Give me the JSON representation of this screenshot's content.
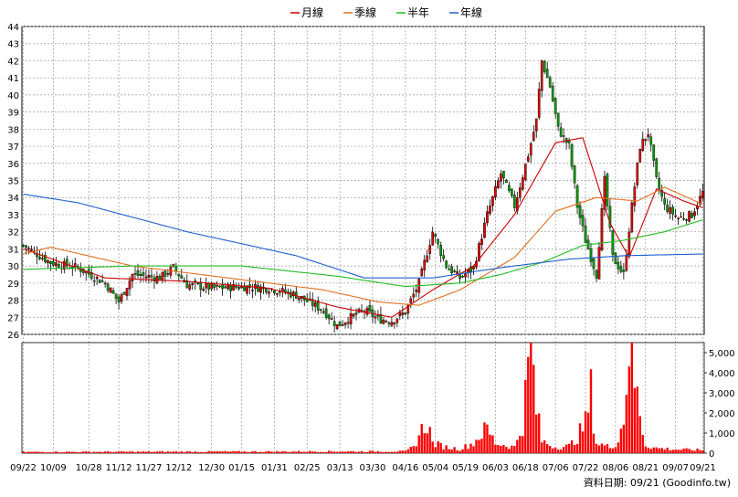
{
  "legend": {
    "items": [
      {
        "label": "月線",
        "color": "#cc0000"
      },
      {
        "label": "季線",
        "color": "#e07020"
      },
      {
        "label": "半年",
        "color": "#22bb22"
      },
      {
        "label": "年線",
        "color": "#1f5fcf"
      }
    ]
  },
  "footer": {
    "date_text": "資料日期: 09/21 (Goodinfo.tw)"
  },
  "chart_data": [
    {
      "type": "candlestick",
      "title": "",
      "ylim": [
        26,
        44
      ],
      "y_ticks": [
        26,
        27,
        28,
        29,
        30,
        31,
        32,
        33,
        34,
        35,
        36,
        37,
        38,
        39,
        40,
        41,
        42,
        43,
        44
      ],
      "grid": true,
      "legend_position": "top",
      "x_ticks": [
        {
          "label": "09/22",
          "index": 0
        },
        {
          "label": "10/09",
          "index": 11
        },
        {
          "label": "10/28",
          "index": 24
        },
        {
          "label": "11/12",
          "index": 35
        },
        {
          "label": "11/27",
          "index": 46
        },
        {
          "label": "12/12",
          "index": 57
        },
        {
          "label": "12/30",
          "index": 69
        },
        {
          "label": "01/15",
          "index": 80
        },
        {
          "label": "01/31",
          "index": 92
        },
        {
          "label": "02/25",
          "index": 104
        },
        {
          "label": "03/13",
          "index": 116
        },
        {
          "label": "03/30",
          "index": 128
        },
        {
          "label": "04/16",
          "index": 140
        },
        {
          "label": "05/04",
          "index": 151
        },
        {
          "label": "05/19",
          "index": 162
        },
        {
          "label": "06/03",
          "index": 173
        },
        {
          "label": "06/18",
          "index": 184
        },
        {
          "label": "07/06",
          "index": 195
        },
        {
          "label": "07/22",
          "index": 206
        },
        {
          "label": "08/06",
          "index": 217
        },
        {
          "label": "08/21",
          "index": 228
        },
        {
          "label": "09/07",
          "index": 239
        },
        {
          "label": "09/21",
          "index": 249
        }
      ],
      "price_anchors": [
        [
          0,
          31.2
        ],
        [
          10,
          30.2
        ],
        [
          20,
          29.9
        ],
        [
          30,
          29.0
        ],
        [
          35,
          27.9
        ],
        [
          40,
          29.5
        ],
        [
          50,
          29.3
        ],
        [
          55,
          29.9
        ],
        [
          60,
          28.9
        ],
        [
          70,
          28.7
        ],
        [
          80,
          28.8
        ],
        [
          90,
          28.7
        ],
        [
          100,
          28.3
        ],
        [
          110,
          27.4
        ],
        [
          115,
          26.5
        ],
        [
          120,
          27.0
        ],
        [
          125,
          27.4
        ],
        [
          130,
          26.9
        ],
        [
          135,
          26.8
        ],
        [
          140,
          27.3
        ],
        [
          145,
          29.0
        ],
        [
          150,
          32.0
        ],
        [
          155,
          30.0
        ],
        [
          160,
          29.3
        ],
        [
          165,
          29.9
        ],
        [
          170,
          33.0
        ],
        [
          175,
          35.4
        ],
        [
          180,
          33.5
        ],
        [
          185,
          36.5
        ],
        [
          188,
          38.5
        ],
        [
          190,
          42.0
        ],
        [
          193,
          40.5
        ],
        [
          196,
          38.0
        ],
        [
          200,
          37.0
        ],
        [
          203,
          33.5
        ],
        [
          206,
          31.5
        ],
        [
          210,
          29.5
        ],
        [
          213,
          35.0
        ],
        [
          216,
          30.5
        ],
        [
          220,
          29.5
        ],
        [
          223,
          33.5
        ],
        [
          226,
          37.0
        ],
        [
          229,
          37.8
        ],
        [
          232,
          35.0
        ],
        [
          235,
          33.5
        ],
        [
          240,
          32.8
        ],
        [
          245,
          33.0
        ],
        [
          249,
          34.3
        ]
      ],
      "moving_averages": [
        {
          "name": "月線",
          "color": "#cc0000",
          "anchors": [
            [
              0,
              31.0
            ],
            [
              30,
              29.3
            ],
            [
              60,
              29.1
            ],
            [
              90,
              28.7
            ],
            [
              115,
              27.6
            ],
            [
              135,
              27.0
            ],
            [
              150,
              28.6
            ],
            [
              165,
              30.0
            ],
            [
              180,
              33.0
            ],
            [
              195,
              37.2
            ],
            [
              205,
              37.5
            ],
            [
              215,
              32.5
            ],
            [
              222,
              30.5
            ],
            [
              232,
              34.5
            ],
            [
              242,
              33.8
            ],
            [
              249,
              33.4
            ]
          ]
        },
        {
          "name": "季線",
          "color": "#e07020",
          "anchors": [
            [
              0,
              30.7
            ],
            [
              10,
              31.1
            ],
            [
              40,
              30.0
            ],
            [
              80,
              29.2
            ],
            [
              110,
              28.6
            ],
            [
              130,
              27.9
            ],
            [
              145,
              27.7
            ],
            [
              160,
              28.6
            ],
            [
              180,
              30.5
            ],
            [
              195,
              33.2
            ],
            [
              210,
              34.0
            ],
            [
              225,
              33.8
            ],
            [
              235,
              34.6
            ],
            [
              249,
              33.6
            ]
          ]
        },
        {
          "name": "半年",
          "color": "#22bb22",
          "anchors": [
            [
              0,
              29.8
            ],
            [
              40,
              30.0
            ],
            [
              80,
              30.0
            ],
            [
              115,
              29.4
            ],
            [
              140,
              28.8
            ],
            [
              160,
              29.0
            ],
            [
              175,
              29.5
            ],
            [
              190,
              30.2
            ],
            [
              205,
              31.2
            ],
            [
              220,
              31.5
            ],
            [
              235,
              32.0
            ],
            [
              249,
              32.7
            ]
          ]
        },
        {
          "name": "年線",
          "color": "#1f5fcf",
          "anchors": [
            [
              0,
              34.2
            ],
            [
              20,
              33.7
            ],
            [
              60,
              32.0
            ],
            [
              100,
              30.6
            ],
            [
              125,
              29.3
            ],
            [
              150,
              29.3
            ],
            [
              175,
              29.9
            ],
            [
              200,
              30.4
            ],
            [
              220,
              30.6
            ],
            [
              249,
              30.7
            ]
          ]
        }
      ]
    },
    {
      "type": "bar",
      "title": "",
      "ylim": [
        0,
        5500
      ],
      "y_ticks": [
        0,
        1000,
        2000,
        3000,
        4000,
        5000
      ],
      "y_tick_labels": [
        "0",
        "1,000",
        "2,000",
        "3,000",
        "4,000",
        "5,000"
      ],
      "color": "#ff0000",
      "volume_anchors": [
        [
          0,
          60
        ],
        [
          140,
          90
        ],
        [
          143,
          300
        ],
        [
          145,
          900
        ],
        [
          148,
          1600
        ],
        [
          150,
          500
        ],
        [
          155,
          300
        ],
        [
          160,
          200
        ],
        [
          165,
          500
        ],
        [
          168,
          1000
        ],
        [
          170,
          1200
        ],
        [
          173,
          500
        ],
        [
          180,
          300
        ],
        [
          183,
          1500
        ],
        [
          184,
          2800
        ],
        [
          186,
          5400
        ],
        [
          188,
          2200
        ],
        [
          190,
          600
        ],
        [
          195,
          300
        ],
        [
          200,
          350
        ],
        [
          203,
          800
        ],
        [
          206,
          1500
        ],
        [
          208,
          3000
        ],
        [
          210,
          500
        ],
        [
          215,
          300
        ],
        [
          218,
          600
        ],
        [
          220,
          1800
        ],
        [
          222,
          5500
        ],
        [
          224,
          3500
        ],
        [
          226,
          2000
        ],
        [
          228,
          400
        ],
        [
          232,
          250
        ],
        [
          240,
          180
        ],
        [
          249,
          150
        ]
      ]
    }
  ]
}
